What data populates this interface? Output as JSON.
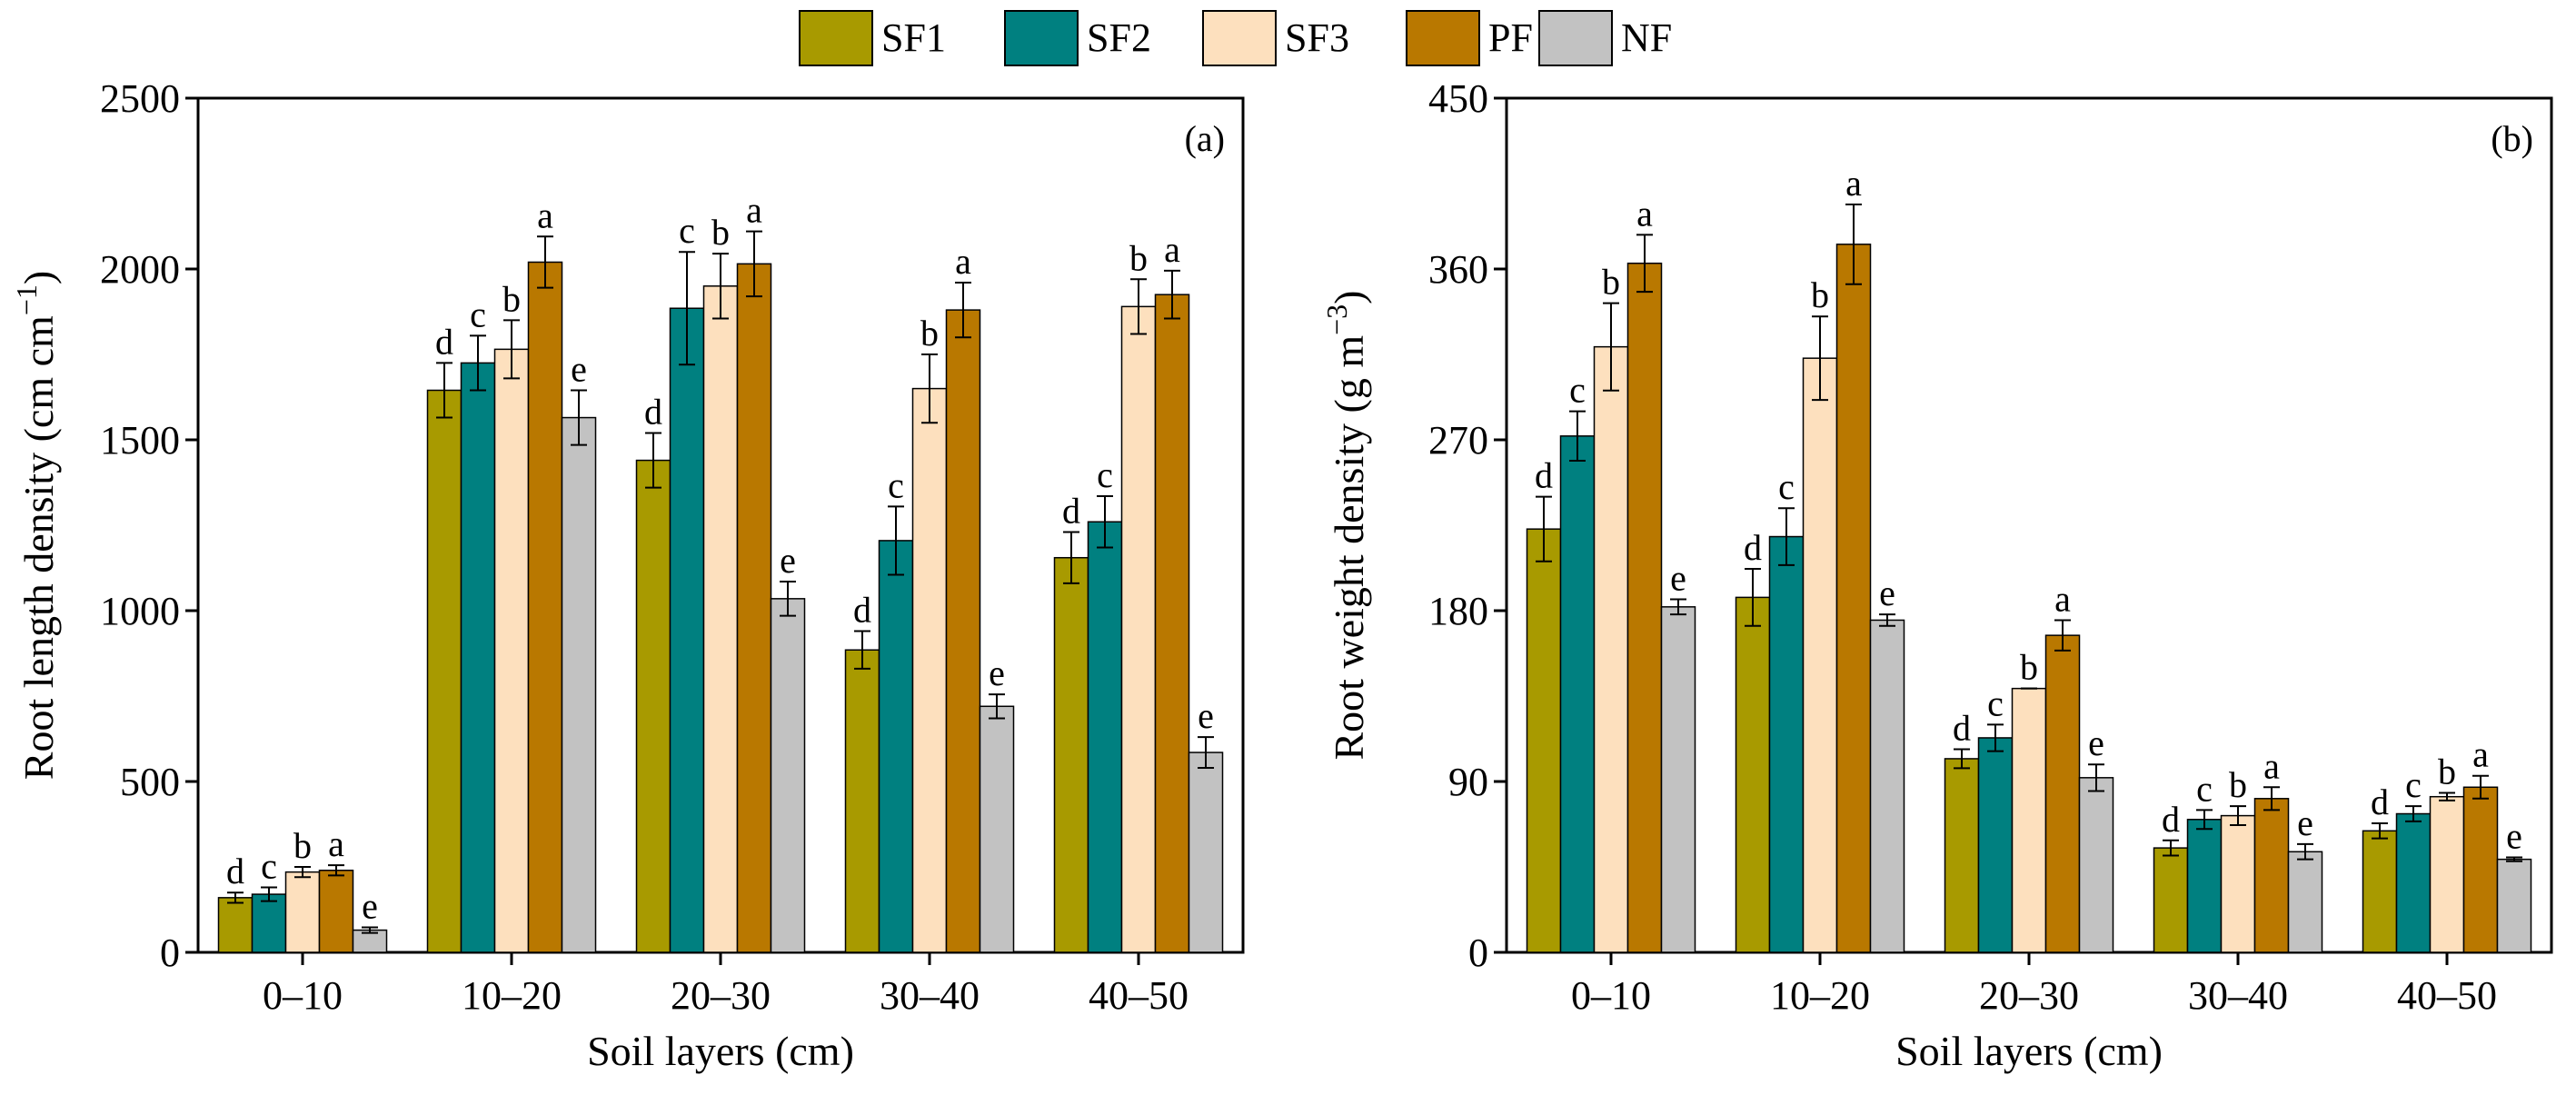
{
  "legend": [
    {
      "name": "SF1",
      "color": "#a89a00"
    },
    {
      "name": "SF2",
      "color": "#008080"
    },
    {
      "name": "SF3",
      "color": "#fde0be"
    },
    {
      "name": "PF",
      "color": "#b97800"
    },
    {
      "name": "NF",
      "color": "#c2c2c2"
    }
  ],
  "chart_data": [
    {
      "type": "bar",
      "panel_label": "(a)",
      "title": "",
      "xlabel": "Soil layers (cm)",
      "ylabel_main": "Root length density (cm cm",
      "ylabel_sup": "−1",
      "ylabel_end": ")",
      "ylim": [
        0,
        2500
      ],
      "yticks": [
        0,
        500,
        1000,
        1500,
        2000,
        2500
      ],
      "grid": false,
      "categories": [
        "0–10",
        "10–20",
        "20–30",
        "30–40",
        "40–50"
      ],
      "series": [
        {
          "name": "SF1",
          "values": [
            160,
            1645,
            1440,
            885,
            1155
          ],
          "errors": [
            15,
            80,
            80,
            55,
            75
          ],
          "letters": [
            "d",
            "d",
            "d",
            "d",
            "d"
          ]
        },
        {
          "name": "SF2",
          "values": [
            170,
            1725,
            1885,
            1205,
            1260
          ],
          "errors": [
            20,
            80,
            165,
            100,
            75
          ],
          "letters": [
            "c",
            "c",
            "c",
            "c",
            "c"
          ]
        },
        {
          "name": "SF3",
          "values": [
            235,
            1765,
            1950,
            1650,
            1890
          ],
          "errors": [
            15,
            85,
            95,
            100,
            80
          ],
          "letters": [
            "b",
            "b",
            "b",
            "b",
            "b"
          ]
        },
        {
          "name": "PF",
          "values": [
            240,
            2020,
            2015,
            1880,
            1925
          ],
          "errors": [
            15,
            75,
            95,
            80,
            70
          ],
          "letters": [
            "a",
            "a",
            "a",
            "a",
            "a"
          ]
        },
        {
          "name": "NF",
          "values": [
            65,
            1565,
            1035,
            720,
            585
          ],
          "errors": [
            8,
            80,
            50,
            35,
            45
          ],
          "letters": [
            "e",
            "e",
            "e",
            "e",
            "e"
          ]
        }
      ]
    },
    {
      "type": "bar",
      "panel_label": "(b)",
      "title": "",
      "xlabel": "Soil layers (cm)",
      "ylabel_main": "Root weight density (g m",
      "ylabel_sup": "−3",
      "ylabel_end": ")",
      "ylim": [
        0,
        450
      ],
      "yticks": [
        0,
        90,
        180,
        270,
        360,
        450
      ],
      "grid": false,
      "categories": [
        "0–10",
        "10–20",
        "20–30",
        "30–40",
        "40–50"
      ],
      "series": [
        {
          "name": "SF1",
          "values": [
            223,
            187,
            102,
            55,
            64
          ],
          "errors": [
            17,
            15,
            5,
            4,
            4
          ],
          "letters": [
            "d",
            "d",
            "d",
            "d",
            "d"
          ]
        },
        {
          "name": "SF2",
          "values": [
            272,
            219,
            113,
            70,
            73
          ],
          "errors": [
            13,
            15,
            7,
            5,
            4
          ],
          "letters": [
            "c",
            "c",
            "c",
            "c",
            "c"
          ]
        },
        {
          "name": "SF3",
          "values": [
            319,
            313,
            139,
            72,
            82
          ],
          "errors": [
            23,
            22,
            0,
            5,
            2
          ],
          "letters": [
            "b",
            "b",
            "b",
            "b",
            "b"
          ]
        },
        {
          "name": "PF",
          "values": [
            363,
            373,
            167,
            81,
            87
          ],
          "errors": [
            15,
            21,
            8,
            6,
            6
          ],
          "letters": [
            "a",
            "a",
            "a",
            "a",
            "a"
          ]
        },
        {
          "name": "NF",
          "values": [
            182,
            175,
            92,
            53,
            49
          ],
          "errors": [
            4,
            3,
            7,
            4,
            1
          ],
          "letters": [
            "e",
            "e",
            "e",
            "e",
            "e"
          ]
        }
      ]
    }
  ]
}
